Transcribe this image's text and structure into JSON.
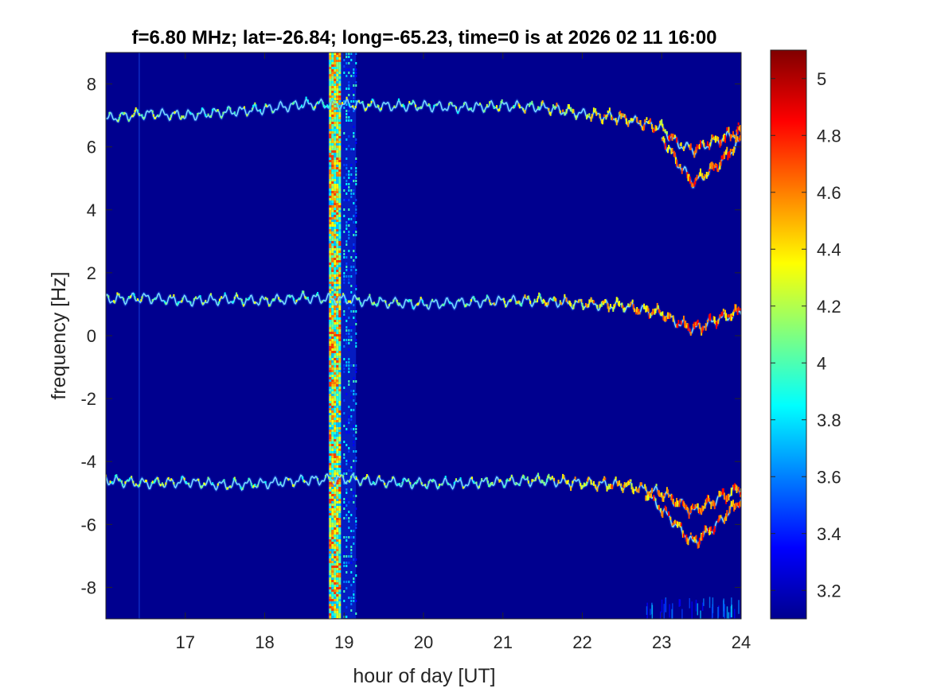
{
  "chart_data": {
    "type": "heatmap",
    "title": "f=6.80 MHz;  lat=-26.84; long=-65.23, time=0 is at 2026 02 11 16:00",
    "xlabel": "hour of day [UT]",
    "ylabel": "frequency [Hz]",
    "xlim": [
      16,
      24
    ],
    "ylim": [
      -9,
      9
    ],
    "x_ticks": [
      17,
      18,
      19,
      20,
      21,
      22,
      23,
      24
    ],
    "y_ticks": [
      8,
      6,
      4,
      2,
      0,
      -2,
      -4,
      -6,
      -8
    ],
    "colorbar": {
      "colormap": "jet",
      "range": [
        3.1,
        5.1
      ],
      "ticks": [
        5,
        4.8,
        4.6,
        4.4,
        4.2,
        4,
        3.8,
        3.6,
        3.4,
        3.2
      ]
    },
    "background_color": "#00008f",
    "features": [
      {
        "name": "",
        "kind": "vertical-band",
        "x_range": [
          18.8,
          19.15
        ]
      },
      {
        "name": "",
        "kind": "trace",
        "points": [
          [
            16.0,
            6.9
          ],
          [
            16.5,
            7.05
          ],
          [
            17.0,
            7.0
          ],
          [
            17.5,
            7.1
          ],
          [
            18.0,
            7.2
          ],
          [
            18.5,
            7.35
          ],
          [
            19.0,
            7.35
          ],
          [
            19.5,
            7.3
          ],
          [
            20.0,
            7.3
          ],
          [
            20.5,
            7.25
          ],
          [
            21.0,
            7.3
          ],
          [
            21.5,
            7.25
          ],
          [
            22.0,
            7.05
          ],
          [
            22.5,
            6.9
          ],
          [
            23.0,
            6.6
          ],
          [
            23.2,
            6.1
          ],
          [
            23.4,
            5.9
          ],
          [
            23.7,
            6.2
          ],
          [
            24.0,
            6.5
          ]
        ]
      },
      {
        "name": "",
        "kind": "trace",
        "points": [
          [
            23.0,
            6.3
          ],
          [
            23.2,
            5.5
          ],
          [
            23.4,
            4.85
          ],
          [
            23.7,
            5.4
          ],
          [
            24.0,
            6.2
          ]
        ]
      },
      {
        "name": "",
        "kind": "trace",
        "points": [
          [
            16.0,
            1.15
          ],
          [
            16.5,
            1.2
          ],
          [
            17.0,
            1.1
          ],
          [
            17.5,
            1.15
          ],
          [
            18.0,
            1.1
          ],
          [
            18.5,
            1.2
          ],
          [
            19.0,
            1.15
          ],
          [
            19.5,
            1.05
          ],
          [
            20.0,
            1.0
          ],
          [
            20.5,
            1.05
          ],
          [
            21.0,
            1.1
          ],
          [
            21.5,
            1.1
          ],
          [
            22.0,
            1.0
          ],
          [
            22.5,
            0.95
          ],
          [
            23.0,
            0.7
          ],
          [
            23.2,
            0.4
          ],
          [
            23.4,
            0.2
          ],
          [
            23.7,
            0.5
          ],
          [
            24.0,
            0.75
          ]
        ]
      },
      {
        "name": "",
        "kind": "trace",
        "points": [
          [
            16.0,
            -4.6
          ],
          [
            16.5,
            -4.7
          ],
          [
            17.0,
            -4.65
          ],
          [
            17.5,
            -4.75
          ],
          [
            18.0,
            -4.7
          ],
          [
            18.5,
            -4.6
          ],
          [
            19.0,
            -4.55
          ],
          [
            19.5,
            -4.65
          ],
          [
            20.0,
            -4.7
          ],
          [
            20.5,
            -4.7
          ],
          [
            21.0,
            -4.65
          ],
          [
            21.5,
            -4.6
          ],
          [
            22.0,
            -4.7
          ],
          [
            22.5,
            -4.75
          ],
          [
            23.0,
            -5.0
          ],
          [
            23.2,
            -5.3
          ],
          [
            23.4,
            -5.6
          ],
          [
            23.7,
            -5.2
          ],
          [
            24.0,
            -4.85
          ]
        ]
      },
      {
        "name": "",
        "kind": "trace",
        "points": [
          [
            22.8,
            -5.0
          ],
          [
            23.1,
            -5.8
          ],
          [
            23.4,
            -6.6
          ],
          [
            23.7,
            -6.0
          ],
          [
            24.0,
            -5.2
          ]
        ]
      }
    ]
  }
}
